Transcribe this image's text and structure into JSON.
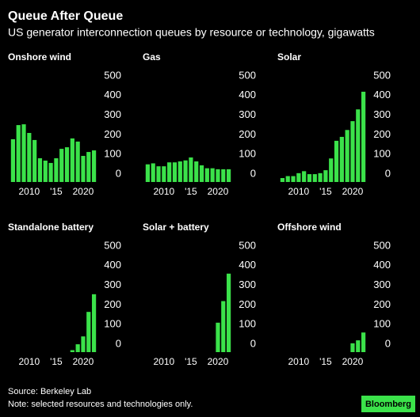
{
  "title": "Queue After Queue",
  "subtitle": "US generator interconnection queues by resource or technology, gigawatts",
  "source": "Source: Berkeley Lab",
  "note": "Note: selected resources and technologies only.",
  "logo": "Bloomberg",
  "chart_data": [
    {
      "type": "bar",
      "title": "Onshore wind",
      "color": "#3be24a",
      "x": [
        2007,
        2008,
        2009,
        2010,
        2011,
        2012,
        2013,
        2014,
        2015,
        2016,
        2017,
        2018,
        2019,
        2020,
        2021,
        2022
      ],
      "values": [
        218,
        290,
        294,
        250,
        214,
        121,
        109,
        97,
        121,
        169,
        177,
        222,
        206,
        133,
        153,
        161
      ],
      "xlim": [
        2006.5,
        2022.5
      ],
      "ylim": [
        0,
        500
      ],
      "yticks": [
        0,
        100,
        200,
        300,
        400,
        500
      ],
      "xticks": [
        2010,
        {
          "value": 2015,
          "label": "'15"
        },
        2020
      ]
    },
    {
      "type": "bar",
      "title": "Gas",
      "color": "#3be24a",
      "x": [
        2007,
        2008,
        2009,
        2010,
        2011,
        2012,
        2013,
        2014,
        2015,
        2016,
        2017,
        2018,
        2019,
        2020,
        2021,
        2022
      ],
      "values": [
        90,
        95,
        80,
        80,
        100,
        100,
        105,
        110,
        125,
        105,
        85,
        70,
        70,
        65,
        65,
        65
      ],
      "xlim": [
        2006.5,
        2022.5
      ],
      "ylim": [
        0,
        500
      ],
      "yticks": [
        0,
        100,
        200,
        300,
        400,
        500
      ],
      "xticks": [
        2010,
        {
          "value": 2015,
          "label": "'15"
        },
        2020
      ]
    },
    {
      "type": "bar",
      "title": "Solar",
      "color": "#3be24a",
      "x": [
        2007,
        2008,
        2009,
        2010,
        2011,
        2012,
        2013,
        2014,
        2015,
        2016,
        2017,
        2018,
        2019,
        2020,
        2021,
        2022
      ],
      "values": [
        20,
        30,
        30,
        45,
        55,
        40,
        40,
        45,
        60,
        120,
        210,
        230,
        265,
        310,
        370,
        460
      ],
      "xlim": [
        2006.5,
        2022.5
      ],
      "ylim": [
        0,
        500
      ],
      "yticks": [
        0,
        100,
        200,
        300,
        400,
        500
      ],
      "xticks": [
        2010,
        {
          "value": 2015,
          "label": "'15"
        },
        2020
      ]
    },
    {
      "type": "bar",
      "title": "Standalone battery",
      "color": "#3be24a",
      "x": [
        2007,
        2008,
        2009,
        2010,
        2011,
        2012,
        2013,
        2014,
        2015,
        2016,
        2017,
        2018,
        2019,
        2020,
        2021,
        2022
      ],
      "values": [
        0,
        0,
        0,
        0,
        0,
        0,
        0,
        0,
        0,
        0,
        0,
        10,
        40,
        80,
        205,
        295
      ],
      "xlim": [
        2006.5,
        2022.5
      ],
      "ylim": [
        0,
        500
      ],
      "yticks": [
        0,
        100,
        200,
        300,
        400,
        500
      ],
      "xticks": [
        2010,
        {
          "value": 2015,
          "label": "'15"
        },
        2020
      ]
    },
    {
      "type": "bar",
      "title": "Solar + battery",
      "color": "#3be24a",
      "x": [
        2007,
        2008,
        2009,
        2010,
        2011,
        2012,
        2013,
        2014,
        2015,
        2016,
        2017,
        2018,
        2019,
        2020,
        2021,
        2022
      ],
      "values": [
        0,
        0,
        0,
        0,
        0,
        0,
        0,
        0,
        0,
        0,
        0,
        0,
        0,
        150,
        260,
        400
      ],
      "xlim": [
        2006.5,
        2022.5
      ],
      "ylim": [
        0,
        500
      ],
      "yticks": [
        0,
        100,
        200,
        300,
        400,
        500
      ],
      "xticks": [
        2010,
        {
          "value": 2015,
          "label": "'15"
        },
        2020
      ]
    },
    {
      "type": "bar",
      "title": "Offshore wind",
      "color": "#3be24a",
      "x": [
        2007,
        2008,
        2009,
        2010,
        2011,
        2012,
        2013,
        2014,
        2015,
        2016,
        2017,
        2018,
        2019,
        2020,
        2021,
        2022
      ],
      "values": [
        0,
        0,
        0,
        0,
        0,
        0,
        0,
        0,
        0,
        0,
        0,
        0,
        0,
        45,
        60,
        100
      ],
      "xlim": [
        2006.5,
        2022.5
      ],
      "ylim": [
        0,
        500
      ],
      "yticks": [
        0,
        100,
        200,
        300,
        400,
        500
      ],
      "xticks": [
        2010,
        {
          "value": 2015,
          "label": "'15"
        },
        2020
      ]
    }
  ]
}
